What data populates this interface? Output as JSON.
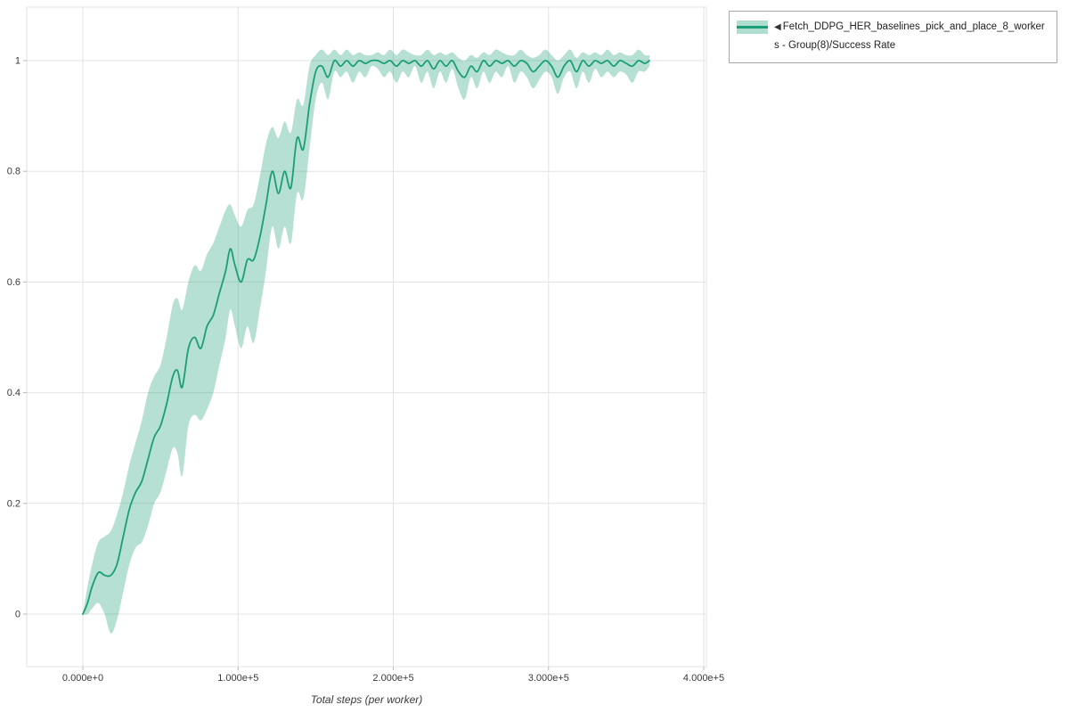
{
  "colors": {
    "line": "#1b9e77",
    "band": "#1b9e77",
    "band_opacity": 0.32,
    "grid": "#e3e3e3",
    "tick_text": "#3a3a3a",
    "legend_border": "#a9a9a9"
  },
  "legend": {
    "marker": "◀",
    "line1": "Fetch_DDPG_HER_baselines_pick_and_place_8_worker",
    "line2": "s - Group(8)/Success Rate"
  },
  "chart_data": {
    "type": "line",
    "title": "",
    "xlabel": "Total steps (per worker)",
    "ylabel": "",
    "xlim": [
      0,
      400000
    ],
    "ylim": [
      -0.09,
      1.1
    ],
    "grid": true,
    "legend_position": "top-right-outside",
    "xtick_values": [
      0,
      100000,
      200000,
      300000,
      400000
    ],
    "xtick_labels": [
      "0.000e+0",
      "1.000e+5",
      "2.000e+5",
      "3.000e+5",
      "4.000e+5"
    ],
    "ytick_values": [
      0,
      0.2,
      0.4,
      0.6,
      0.8,
      1
    ],
    "ytick_labels": [
      "0",
      "0.2",
      "0.4",
      "0.6",
      "0.8",
      "1"
    ],
    "series": [
      {
        "name": "Fetch_DDPG_HER_baselines_pick_and_place_8_workers - Group(8)/Success Rate",
        "color": "#1b9e77",
        "x": [
          0,
          3000,
          6000,
          10000,
          14000,
          18000,
          22000,
          26000,
          30000,
          34000,
          38000,
          42000,
          46000,
          50000,
          54000,
          58000,
          61000,
          64000,
          68000,
          72000,
          76000,
          80000,
          84000,
          88000,
          92000,
          95000,
          98000,
          102000,
          106000,
          110000,
          114000,
          118000,
          122000,
          126000,
          130000,
          134000,
          138000,
          142000,
          146000,
          150000,
          154000,
          158000,
          162000,
          166000,
          170000,
          174000,
          178000,
          182000,
          186000,
          190000,
          194000,
          198000,
          202000,
          206000,
          210000,
          214000,
          218000,
          222000,
          226000,
          230000,
          234000,
          238000,
          242000,
          246000,
          250000,
          254000,
          258000,
          262000,
          266000,
          270000,
          274000,
          278000,
          282000,
          286000,
          290000,
          294000,
          298000,
          302000,
          306000,
          310000,
          314000,
          318000,
          322000,
          326000,
          330000,
          334000,
          338000,
          342000,
          346000,
          350000,
          354000,
          358000,
          362000,
          365000
        ],
        "mean": [
          0.0,
          0.02,
          0.05,
          0.075,
          0.07,
          0.07,
          0.09,
          0.14,
          0.19,
          0.22,
          0.24,
          0.28,
          0.32,
          0.34,
          0.38,
          0.43,
          0.44,
          0.41,
          0.48,
          0.5,
          0.48,
          0.52,
          0.54,
          0.58,
          0.62,
          0.66,
          0.63,
          0.6,
          0.64,
          0.64,
          0.68,
          0.74,
          0.8,
          0.76,
          0.8,
          0.77,
          0.86,
          0.84,
          0.92,
          0.98,
          0.99,
          0.97,
          1.0,
          0.99,
          1.0,
          0.99,
          1.0,
          0.995,
          1.0,
          1.0,
          0.995,
          1.0,
          0.99,
          1.0,
          0.995,
          1.0,
          0.99,
          1.0,
          0.985,
          1.0,
          0.99,
          1.0,
          0.98,
          0.97,
          0.99,
          0.98,
          1.0,
          0.99,
          1.0,
          0.995,
          1.0,
          0.99,
          1.0,
          0.995,
          0.98,
          0.99,
          1.0,
          0.99,
          0.97,
          0.99,
          1.0,
          0.98,
          1.0,
          0.99,
          1.0,
          0.995,
          1.0,
          0.99,
          1.0,
          0.995,
          0.99,
          1.0,
          0.995,
          1.0
        ],
        "lo": [
          0.0,
          0.0,
          0.01,
          0.02,
          0.0,
          -0.035,
          -0.01,
          0.04,
          0.09,
          0.12,
          0.13,
          0.16,
          0.2,
          0.22,
          0.26,
          0.3,
          0.29,
          0.25,
          0.34,
          0.36,
          0.35,
          0.37,
          0.4,
          0.45,
          0.5,
          0.55,
          0.52,
          0.48,
          0.52,
          0.49,
          0.55,
          0.62,
          0.7,
          0.66,
          0.7,
          0.67,
          0.76,
          0.75,
          0.84,
          0.93,
          0.96,
          0.93,
          0.98,
          0.97,
          0.98,
          0.96,
          0.98,
          0.97,
          0.99,
          0.985,
          0.97,
          0.98,
          0.96,
          0.98,
          0.97,
          0.99,
          0.96,
          0.98,
          0.95,
          0.98,
          0.96,
          0.985,
          0.95,
          0.93,
          0.97,
          0.95,
          0.98,
          0.96,
          0.98,
          0.97,
          0.99,
          0.96,
          0.98,
          0.97,
          0.95,
          0.965,
          0.98,
          0.97,
          0.94,
          0.97,
          0.98,
          0.95,
          0.98,
          0.96,
          0.985,
          0.97,
          0.98,
          0.97,
          0.98,
          0.975,
          0.96,
          0.98,
          0.98,
          0.99
        ],
        "hi": [
          0.0,
          0.05,
          0.09,
          0.13,
          0.14,
          0.15,
          0.18,
          0.22,
          0.27,
          0.31,
          0.35,
          0.4,
          0.43,
          0.45,
          0.5,
          0.56,
          0.57,
          0.55,
          0.6,
          0.63,
          0.62,
          0.65,
          0.67,
          0.7,
          0.73,
          0.74,
          0.72,
          0.7,
          0.73,
          0.74,
          0.79,
          0.85,
          0.88,
          0.86,
          0.89,
          0.87,
          0.93,
          0.92,
          0.99,
          1.01,
          1.02,
          1.01,
          1.02,
          1.01,
          1.02,
          1.01,
          1.015,
          1.01,
          1.01,
          1.015,
          1.01,
          1.02,
          1.01,
          1.02,
          1.015,
          1.01,
          1.01,
          1.02,
          1.01,
          1.015,
          1.01,
          1.015,
          1.005,
          1.0,
          1.01,
          1.005,
          1.015,
          1.01,
          1.02,
          1.015,
          1.01,
          1.01,
          1.02,
          1.01,
          1.005,
          1.01,
          1.02,
          1.01,
          1.0,
          1.01,
          1.02,
          1.005,
          1.015,
          1.01,
          1.015,
          1.01,
          1.02,
          1.01,
          1.015,
          1.01,
          1.01,
          1.02,
          1.01,
          1.01
        ]
      }
    ]
  }
}
